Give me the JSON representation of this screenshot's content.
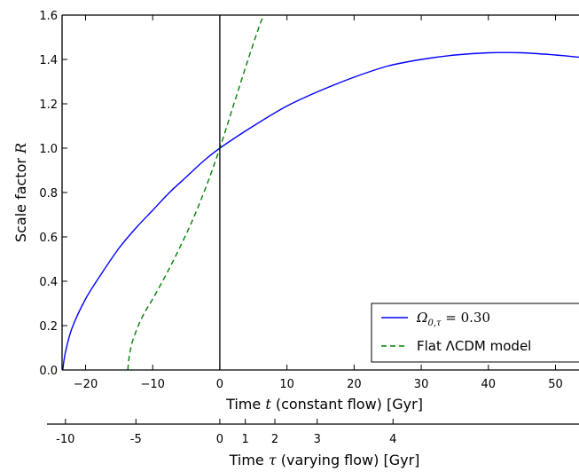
{
  "chart_data": {
    "type": "line",
    "x_axis": {
      "label_prefix": "Time ",
      "label_symbol": "t",
      "label_suffix": " (constant flow) [Gyr]",
      "range": [
        -23.5,
        53.5
      ],
      "ticks": [
        -20,
        -10,
        0,
        10,
        20,
        30,
        40,
        50
      ],
      "tick_labels": [
        "−20",
        "−10",
        "0",
        "10",
        "20",
        "30",
        "40",
        "50"
      ]
    },
    "y_axis": {
      "label_prefix": "Scale factor ",
      "label_symbol": "R",
      "range": [
        0.0,
        1.6
      ],
      "ticks": [
        0.0,
        0.2,
        0.4,
        0.6,
        0.8,
        1.0,
        1.2,
        1.4,
        1.6
      ],
      "tick_labels": [
        "0.0",
        "0.2",
        "0.4",
        "0.6",
        "0.8",
        "1.0",
        "1.2",
        "1.4",
        "1.6"
      ]
    },
    "secondary_x_axis": {
      "label_prefix": "Time ",
      "label_symbol": "τ",
      "label_suffix": " (varying flow) [Gyr]",
      "tick_labels": [
        "-10",
        "-5",
        "0",
        "1",
        "2",
        "3",
        "4"
      ],
      "tick_positions_t": [
        -23.0,
        -12.5,
        0.0,
        3.8,
        8.2,
        14.5,
        25.8
      ]
    },
    "vertical_line_x": 0,
    "grid": false,
    "legend_position": "lower-right",
    "series": [
      {
        "name_main": "Ω",
        "name_sub": "0,τ",
        "name_rest": " = 0.30",
        "color": "#0000ff",
        "dash": "solid",
        "x": [
          -23.4,
          -23.0,
          -22.0,
          -20.0,
          -17.5,
          -15.0,
          -12.5,
          -10.0,
          -7.5,
          -5.0,
          -2.5,
          0.0,
          5.0,
          10.0,
          15.0,
          20.0,
          25.0,
          30.0,
          35.0,
          40.0,
          45.0,
          50.0,
          53.5
        ],
        "y": [
          0.0,
          0.08,
          0.19,
          0.32,
          0.44,
          0.55,
          0.64,
          0.72,
          0.8,
          0.87,
          0.94,
          1.0,
          1.1,
          1.19,
          1.26,
          1.32,
          1.37,
          1.4,
          1.42,
          1.43,
          1.43,
          1.42,
          1.41
        ]
      },
      {
        "name_main": "Flat ",
        "name_sub": "",
        "name_rest": "ΛCDM model",
        "color": "#008000",
        "dash": "dashed",
        "x": [
          -13.7,
          -13.5,
          -13.0,
          -12.0,
          -11.0,
          -10.0,
          -8.0,
          -6.0,
          -4.0,
          -2.0,
          0.0,
          2.0,
          4.0,
          6.0,
          7.0
        ],
        "y": [
          0.0,
          0.06,
          0.13,
          0.21,
          0.27,
          0.32,
          0.43,
          0.55,
          0.68,
          0.83,
          1.0,
          1.19,
          1.38,
          1.56,
          1.63
        ]
      }
    ]
  }
}
